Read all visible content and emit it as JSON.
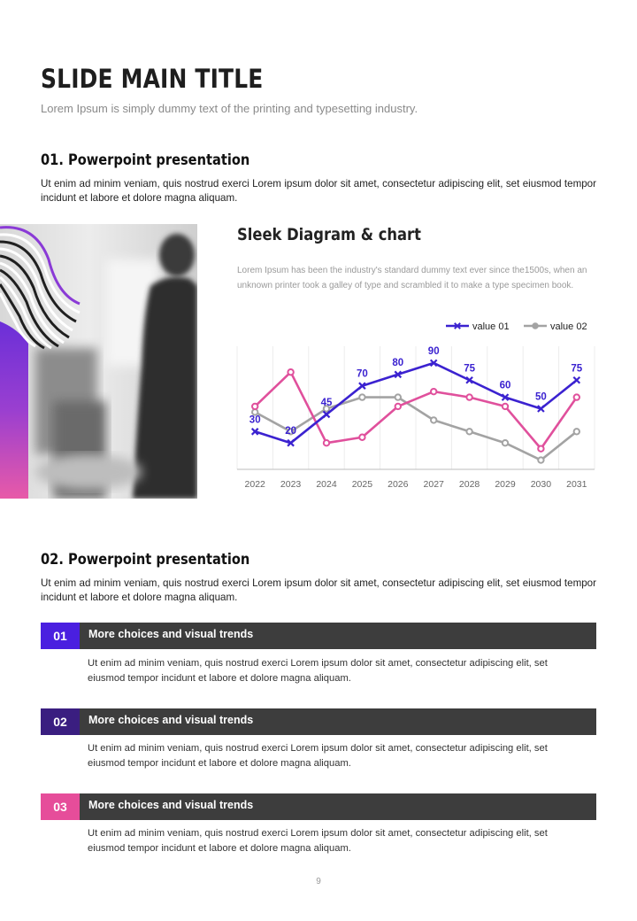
{
  "header": {
    "title": "SLIDE MAIN TITLE",
    "subtitle": "Lorem Ipsum is simply dummy text of the printing and typesetting industry."
  },
  "section1": {
    "title": "01. Powerpoint presentation",
    "body": "Ut enim ad minim veniam, quis nostrud exerci  Lorem ipsum dolor sit amet, consectetur adipiscing elit, set eiusmod tempor incidunt et labore et dolore magna aliquam."
  },
  "chart_panel": {
    "title": "Sleek Diagram & chart",
    "description": "Lorem Ipsum has been the industry's standard dummy text ever since the1500s, when an unknown printer took a galley of type and scrambled it to make a type specimen book."
  },
  "chart_data": {
    "type": "line",
    "categories": [
      "2022",
      "2023",
      "2024",
      "2025",
      "2026",
      "2027",
      "2028",
      "2029",
      "2030",
      "2031"
    ],
    "series": [
      {
        "name": "value 01",
        "values": [
          30,
          20,
          45,
          70,
          80,
          90,
          75,
          60,
          50,
          75
        ],
        "color": "#3b22d0",
        "marker": "x",
        "labels": true
      },
      {
        "name": "value 02",
        "values": [
          47,
          30,
          50,
          60,
          60,
          40,
          30,
          20,
          5,
          30
        ],
        "color": "#a3a3a3",
        "marker": "circle",
        "labels": false
      },
      {
        "name": "",
        "values": [
          52,
          82,
          20,
          25,
          52,
          65,
          60,
          52,
          15,
          60
        ],
        "color": "#e0509c",
        "marker": "circle",
        "labels": false
      }
    ],
    "legend": {
      "position": "top-right"
    },
    "ylim": [
      0,
      100
    ],
    "grid": {
      "vertical": true,
      "horizontal": false
    }
  },
  "section2": {
    "title": "02. Powerpoint presentation",
    "body": "Ut enim ad minim veniam, quis nostrud exerci  Lorem ipsum dolor sit amet, consectetur adipiscing elit, set eiusmod tempor incidunt et labore et dolore magna aliquam.",
    "items": [
      {
        "number": "01",
        "color": "#4a1fe0",
        "title": "More choices and visual trends",
        "body": "Ut enim ad minim veniam, quis nostrud exerci  Lorem ipsum dolor sit amet, consectetur adipiscing elit, set eiusmod tempor incidunt et labore et dolore magna aliquam."
      },
      {
        "number": "02",
        "color": "#3a1e80",
        "title": "More choices and visual trends",
        "body": "Ut enim ad minim veniam, quis nostrud exerci  Lorem ipsum dolor sit amet, consectetur adipiscing elit, set eiusmod tempor incidunt et labore et dolore magna aliquam."
      },
      {
        "number": "03",
        "color": "#e64d9a",
        "title": "More choices and visual trends",
        "body": "Ut enim ad minim veniam, quis nostrud exerci  Lorem ipsum dolor sit amet, consectetur adipiscing elit, set eiusmod tempor incidunt et labore et dolore magna aliquam."
      }
    ]
  },
  "footer": {
    "page_number": "9"
  }
}
